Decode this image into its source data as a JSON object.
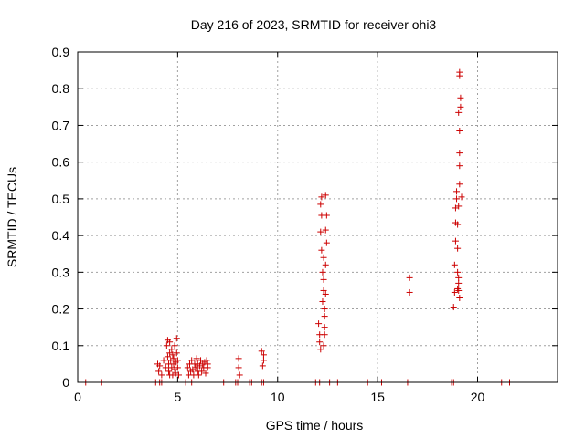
{
  "chart_data": {
    "type": "scatter",
    "title": "Day 216 of 2023, SRMTID for receiver ohi3",
    "xlabel": "GPS time / hours",
    "ylabel": "SRMTID / TECUs",
    "xlim": [
      0,
      24
    ],
    "ylim": [
      0,
      0.9
    ],
    "xticks": [
      0,
      5,
      10,
      15,
      20
    ],
    "yticks": [
      0,
      0.1,
      0.2,
      0.3,
      0.4,
      0.5,
      0.6,
      0.7,
      0.8,
      0.9
    ],
    "grid": true,
    "legend": "none",
    "marker_color": "#cc0000",
    "series": [
      {
        "points": [
          [
            0.4,
            0
          ],
          [
            1.2,
            0
          ],
          [
            3.9,
            0
          ],
          [
            4.1,
            0
          ],
          [
            4.2,
            0
          ],
          [
            5.4,
            0
          ],
          [
            5.7,
            0
          ],
          [
            7.3,
            0
          ],
          [
            7.9,
            0
          ],
          [
            8.0,
            0
          ],
          [
            8.6,
            0
          ],
          [
            8.7,
            0
          ],
          [
            9.2,
            0
          ],
          [
            9.3,
            0
          ],
          [
            11.9,
            0
          ],
          [
            12.1,
            0
          ],
          [
            12.6,
            0
          ],
          [
            13.0,
            0
          ],
          [
            14.5,
            0
          ],
          [
            15.2,
            0
          ],
          [
            16.5,
            0
          ],
          [
            18.7,
            0
          ],
          [
            18.8,
            0
          ],
          [
            21.2,
            0
          ],
          [
            21.6,
            0
          ],
          [
            4.0,
            0.05
          ],
          [
            4.05,
            0.03
          ],
          [
            4.1,
            0.045
          ],
          [
            4.2,
            0.02
          ],
          [
            4.3,
            0.06
          ],
          [
            4.4,
            0.04
          ],
          [
            4.45,
            0.1
          ],
          [
            4.5,
            0.115
          ],
          [
            4.5,
            0.07
          ],
          [
            4.55,
            0.05
          ],
          [
            4.55,
            0.03
          ],
          [
            4.6,
            0.11
          ],
          [
            4.6,
            0.08
          ],
          [
            4.6,
            0.02
          ],
          [
            4.65,
            0.06
          ],
          [
            4.7,
            0.09
          ],
          [
            4.7,
            0.04
          ],
          [
            4.75,
            0.075
          ],
          [
            4.75,
            0.02
          ],
          [
            4.8,
            0.065
          ],
          [
            4.8,
            0.05
          ],
          [
            4.85,
            0.1
          ],
          [
            4.85,
            0.035
          ],
          [
            4.9,
            0.055
          ],
          [
            4.9,
            0.025
          ],
          [
            4.95,
            0.12
          ],
          [
            4.95,
            0.08
          ],
          [
            5.0,
            0.06
          ],
          [
            5.0,
            0.04
          ],
          [
            5.05,
            0.02
          ],
          [
            5.5,
            0.04
          ],
          [
            5.55,
            0.02
          ],
          [
            5.6,
            0.05
          ],
          [
            5.65,
            0.03
          ],
          [
            5.7,
            0.06
          ],
          [
            5.75,
            0.035
          ],
          [
            5.8,
            0.02
          ],
          [
            5.85,
            0.05
          ],
          [
            5.9,
            0.04
          ],
          [
            5.95,
            0.065
          ],
          [
            6.0,
            0.03
          ],
          [
            6.0,
            0.05
          ],
          [
            6.05,
            0.02
          ],
          [
            6.1,
            0.045
          ],
          [
            6.15,
            0.06
          ],
          [
            6.2,
            0.03
          ],
          [
            6.25,
            0.05
          ],
          [
            6.3,
            0.04
          ],
          [
            6.35,
            0.055
          ],
          [
            6.4,
            0.025
          ],
          [
            6.45,
            0.06
          ],
          [
            6.5,
            0.04
          ],
          [
            6.5,
            0.05
          ],
          [
            8.05,
            0.065
          ],
          [
            8.05,
            0.04
          ],
          [
            8.1,
            0.02
          ],
          [
            9.2,
            0.085
          ],
          [
            9.3,
            0.075
          ],
          [
            9.3,
            0.06
          ],
          [
            9.25,
            0.045
          ],
          [
            12.05,
            0.16
          ],
          [
            12.1,
            0.13
          ],
          [
            12.1,
            0.11
          ],
          [
            12.15,
            0.09
          ],
          [
            12.2,
            0.36
          ],
          [
            12.15,
            0.41
          ],
          [
            12.2,
            0.455
          ],
          [
            12.15,
            0.485
          ],
          [
            12.2,
            0.505
          ],
          [
            12.25,
            0.3
          ],
          [
            12.3,
            0.25
          ],
          [
            12.3,
            0.28
          ],
          [
            12.35,
            0.2
          ],
          [
            12.35,
            0.15
          ],
          [
            12.4,
            0.24
          ],
          [
            12.4,
            0.32
          ],
          [
            12.35,
            0.18
          ],
          [
            12.3,
            0.1
          ],
          [
            12.35,
            0.13
          ],
          [
            12.4,
            0.51
          ],
          [
            12.45,
            0.455
          ],
          [
            12.4,
            0.415
          ],
          [
            12.45,
            0.38
          ],
          [
            12.3,
            0.34
          ],
          [
            12.25,
            0.22
          ],
          [
            16.6,
            0.285
          ],
          [
            16.6,
            0.245
          ],
          [
            18.8,
            0.205
          ],
          [
            18.85,
            0.245
          ],
          [
            18.85,
            0.32
          ],
          [
            18.9,
            0.385
          ],
          [
            18.9,
            0.435
          ],
          [
            18.9,
            0.475
          ],
          [
            18.95,
            0.5
          ],
          [
            18.95,
            0.52
          ],
          [
            19.0,
            0.255
          ],
          [
            19.0,
            0.3
          ],
          [
            19.0,
            0.365
          ],
          [
            19.0,
            0.43
          ],
          [
            19.05,
            0.27
          ],
          [
            19.05,
            0.48
          ],
          [
            19.05,
            0.735
          ],
          [
            19.1,
            0.54
          ],
          [
            19.1,
            0.59
          ],
          [
            19.1,
            0.625
          ],
          [
            19.1,
            0.685
          ],
          [
            19.15,
            0.75
          ],
          [
            19.15,
            0.775
          ],
          [
            19.1,
            0.845
          ],
          [
            19.1,
            0.835
          ],
          [
            19.2,
            0.505
          ],
          [
            19.1,
            0.23
          ],
          [
            19.05,
            0.25
          ],
          [
            19.05,
            0.285
          ]
        ]
      }
    ]
  }
}
